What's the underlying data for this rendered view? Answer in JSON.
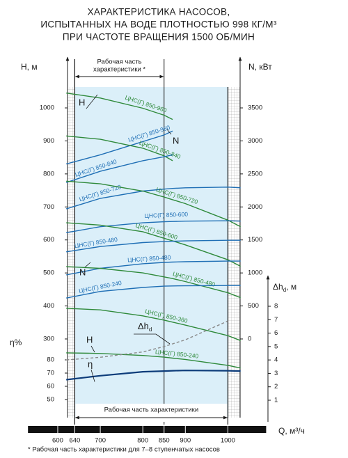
{
  "chart_data": {
    "type": "line",
    "title": [
      "ХАРАКТЕРИСТИКА НАСОСОВ,",
      "ИСПЫТАННЫХ НА ВОДЕ ПЛОТНОСТЬЮ 998 КГ/М³",
      "ПРИ ЧАСТОТЕ ВРАЩЕНИЯ 1500 ОБ/МИН"
    ],
    "xlabel": "Q, м³/ч",
    "xlim": [
      530,
      1090
    ],
    "xticks": [
      600,
      640,
      700,
      800,
      850,
      900,
      1000
    ],
    "ylabel": "H, м",
    "ylim": [
      200,
      1100
    ],
    "yticks": [
      300,
      400,
      500,
      600,
      700,
      800,
      900,
      1000
    ],
    "y2label": "N, кВт",
    "y2lim": [
      -500,
      4000
    ],
    "y2ticks": [
      0,
      500,
      1000,
      1500,
      2000,
      2500,
      3000,
      3500
    ],
    "y3label": "η%",
    "y3lim": [
      50,
      80
    ],
    "y3ticks": [
      50,
      60,
      70,
      80
    ],
    "y4label": {
      "main": "Δh",
      "sub": "d",
      "unit": ", м"
    },
    "y4lim": [
      1,
      8
    ],
    "y4ticks": [
      1,
      2,
      3,
      4,
      5,
      6,
      7,
      8
    ],
    "x": [
      620,
      700,
      800,
      850,
      870,
      900,
      1000,
      1030
    ],
    "series": [
      {
        "name": "ЦНС(Г) 850-960",
        "axis": "y",
        "color": "#2f8a3b",
        "values": [
          1045,
          1030,
          999,
          978,
          965,
          null,
          null,
          null
        ]
      },
      {
        "name": "ЦНС(Г) 850-960",
        "axis": "y2",
        "color": "#1f6fb5",
        "values": [
          2650,
          2790,
          2990,
          3090,
          3150,
          null,
          null,
          null
        ]
      },
      {
        "name": "ЦНС(Г) 850-840",
        "axis": "y",
        "color": "#2f8a3b",
        "values": [
          915,
          905,
          878,
          855,
          840,
          null,
          null,
          null
        ]
      },
      {
        "name": "ЦНС(Г) 850-840",
        "axis": "y2",
        "color": "#1f6fb5",
        "values": [
          2370,
          2540,
          2700,
          2760,
          2790,
          null,
          null,
          null
        ]
      },
      {
        "name": "ЦНС(Г) 850-720",
        "axis": "y2",
        "color": "#1f6fb5",
        "values": [
          1970,
          2130,
          2240,
          2270,
          2280,
          2290,
          2300,
          2290
        ]
      },
      {
        "name": "ЦНС(Г) 850-720",
        "axis": "y",
        "color": "#2f8a3b",
        "values": [
          778,
          770,
          748,
          730,
          722,
          710,
          660,
          640
        ]
      },
      {
        "name": "ЦНС(Г) 850-600",
        "axis": "y2",
        "color": "#1f6fb5",
        "values": [
          1610,
          1700,
          1760,
          1775,
          1780,
          1785,
          1790,
          1785
        ]
      },
      {
        "name": "ЦНС(Г) 850-600",
        "axis": "y",
        "color": "#2f8a3b",
        "values": [
          652,
          645,
          625,
          605,
          597,
          585,
          540,
          520
        ]
      },
      {
        "name": "ЦНС(Г) 850-480",
        "axis": "y2",
        "color": "#1f6fb5",
        "values": [
          1320,
          1400,
          1460,
          1475,
          1480,
          1485,
          1495,
          1495
        ]
      },
      {
        "name": "ЦНС(Г) 850-480",
        "axis": "y2",
        "color": "#1f6fb5",
        "values": [
          970,
          1070,
          1140,
          1160,
          1165,
          1170,
          1180,
          1180
        ]
      },
      {
        "name": "ЦНС(Г) 850-480",
        "axis": "y",
        "color": "#2f8a3b",
        "values": [
          519,
          514,
          500,
          488,
          483,
          474,
          440,
          425
        ]
      },
      {
        "name": "ЦНС(Г) 850-240",
        "axis": "y2",
        "color": "#1f6fb5",
        "values": [
          620,
          720,
          780,
          800,
          803,
          805,
          810,
          810
        ]
      },
      {
        "name": "ЦНС(Г) 850-360",
        "axis": "y",
        "color": "#2f8a3b",
        "values": [
          393,
          388,
          370,
          357,
          351,
          342,
          310,
          295
        ]
      },
      {
        "name": "ЦНС(Г) 850-240",
        "axis": "y",
        "color": "#2f8a3b",
        "values": [
          258,
          256,
          250,
          245,
          242,
          238,
          220,
          212
        ]
      },
      {
        "name": "η",
        "axis": "y3",
        "color": "#0d3c7a",
        "values": [
          65,
          68,
          71,
          71.5,
          71.8,
          72,
          71.8,
          71.5
        ]
      },
      {
        "name": "Δh",
        "subscript": "d",
        "axis": "y4",
        "color": "#8a8a8a",
        "dashed": true,
        "values": [
          4.0,
          4.2,
          4.6,
          5.0,
          5.2,
          5.5,
          6.9,
          null
        ]
      }
    ],
    "annotations": [
      "H",
      "N",
      "N",
      "H"
    ],
    "working_range_top": {
      "label": [
        "Рабочая часть",
        "характеристики *"
      ],
      "from": 640,
      "to": 850
    },
    "working_range_bottom": {
      "label": "Рабочая часть характеристики",
      "from": 640,
      "to": 1000
    },
    "footnote": "* Рабочая часть характеристики для 7–8 ступенчатых насосов"
  }
}
